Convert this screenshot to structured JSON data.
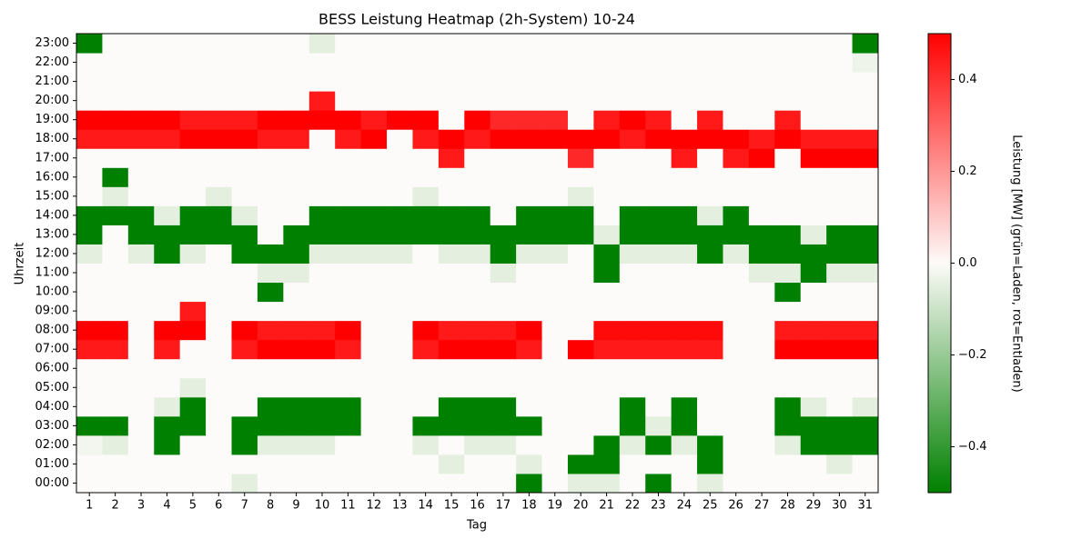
{
  "chart_data": {
    "type": "heatmap",
    "title": "BESS Leistung Heatmap (2h-System) 10-24",
    "xlabel": "Tag",
    "ylabel": "Uhrzeit",
    "colorbar_label": "Leistung [MW] (grün=Laden, rot=Entladen)",
    "x": [
      1,
      2,
      3,
      4,
      5,
      6,
      7,
      8,
      9,
      10,
      11,
      12,
      13,
      14,
      15,
      16,
      17,
      18,
      19,
      20,
      21,
      22,
      23,
      24,
      25,
      26,
      27,
      28,
      29,
      30,
      31
    ],
    "y": [
      "00:00",
      "01:00",
      "02:00",
      "03:00",
      "04:00",
      "05:00",
      "06:00",
      "07:00",
      "08:00",
      "09:00",
      "10:00",
      "11:00",
      "12:00",
      "13:00",
      "14:00",
      "15:00",
      "16:00",
      "17:00",
      "18:00",
      "19:00",
      "20:00",
      "21:00",
      "22:00",
      "23:00"
    ],
    "z": [
      [
        0,
        0,
        0,
        0,
        0,
        0,
        -0.05,
        0,
        0,
        0,
        0,
        0,
        0,
        0,
        0,
        0,
        0,
        -0.5,
        0,
        -0.05,
        -0.05,
        0,
        -0.5,
        0,
        -0.05,
        0,
        0,
        0,
        0,
        0,
        0
      ],
      [
        0,
        0,
        0,
        0,
        0,
        0,
        0,
        0,
        0,
        0,
        0,
        0,
        0,
        0,
        -0.05,
        0,
        0,
        -0.05,
        0,
        -0.5,
        -0.5,
        0,
        0,
        0,
        -0.5,
        0,
        0,
        0,
        0,
        -0.05,
        0
      ],
      [
        -0.02,
        -0.05,
        0,
        -0.5,
        0,
        0,
        -0.5,
        -0.05,
        -0.05,
        -0.05,
        0,
        0,
        0,
        -0.05,
        0,
        -0.05,
        -0.05,
        0,
        0,
        0,
        -0.5,
        -0.05,
        -0.5,
        -0.05,
        -0.5,
        0,
        0,
        -0.05,
        -0.5,
        -0.5,
        -0.5
      ],
      [
        -0.5,
        -0.5,
        0,
        -0.5,
        -0.5,
        0,
        -0.5,
        -0.5,
        -0.5,
        -0.5,
        -0.5,
        0,
        0,
        -0.5,
        -0.5,
        -0.5,
        -0.5,
        -0.5,
        0,
        0,
        0,
        -0.5,
        -0.05,
        -0.5,
        0,
        0,
        0,
        -0.5,
        -0.5,
        -0.5,
        -0.5
      ],
      [
        0,
        0,
        0,
        -0.05,
        -0.5,
        0,
        0,
        -0.5,
        -0.5,
        -0.5,
        -0.5,
        0,
        0,
        0,
        -0.5,
        -0.5,
        -0.5,
        0,
        0,
        0,
        0,
        -0.5,
        0,
        -0.5,
        0,
        0,
        0,
        -0.5,
        -0.05,
        0,
        -0.05
      ],
      [
        0,
        0,
        0,
        0,
        -0.05,
        0,
        0,
        0,
        0,
        0,
        0,
        0,
        0,
        0,
        0,
        0,
        0,
        0,
        0,
        0,
        0,
        0,
        0,
        0,
        0,
        0,
        0,
        0,
        0,
        0,
        0
      ],
      [
        0,
        0,
        0,
        0,
        0,
        0,
        0,
        0,
        0,
        0,
        0,
        0,
        0,
        0,
        0,
        0,
        0,
        0,
        0,
        0,
        0,
        0,
        0,
        0,
        0,
        0,
        0,
        0,
        0,
        0,
        0
      ],
      [
        0.45,
        0.45,
        0,
        0.45,
        0,
        0,
        0.45,
        0.5,
        0.5,
        0.5,
        0.45,
        0,
        0,
        0.45,
        0.5,
        0.5,
        0.5,
        0.45,
        0,
        0.5,
        0.45,
        0.45,
        0.45,
        0.45,
        0.45,
        0,
        0,
        0.5,
        0.5,
        0.5,
        0.5
      ],
      [
        0.5,
        0.5,
        0,
        0.5,
        0.5,
        0,
        0.5,
        0.45,
        0.45,
        0.45,
        0.5,
        0,
        0,
        0.5,
        0.45,
        0.45,
        0.45,
        0.5,
        0,
        0,
        0.48,
        0.48,
        0.48,
        0.48,
        0.48,
        0,
        0,
        0.45,
        0.45,
        0.45,
        0.45
      ],
      [
        0,
        0,
        0,
        0,
        0.45,
        0,
        0,
        0,
        0,
        0,
        0,
        0,
        0,
        0,
        0,
        0,
        0,
        0,
        0,
        0,
        0,
        0,
        0,
        0,
        0,
        0,
        0,
        0,
        0,
        0,
        0
      ],
      [
        0,
        0,
        0,
        0,
        0,
        0,
        0,
        -0.5,
        0,
        0,
        0,
        0,
        0,
        0,
        0,
        0,
        0,
        0,
        0,
        0,
        0,
        0,
        0,
        0,
        0,
        0,
        0,
        -0.5,
        0,
        0,
        0
      ],
      [
        0,
        0,
        0,
        0,
        0,
        0,
        0,
        -0.05,
        -0.05,
        0,
        0,
        0,
        0,
        0,
        0,
        0,
        -0.05,
        0,
        0,
        0,
        -0.5,
        0,
        0,
        0,
        0,
        0,
        -0.05,
        -0.05,
        -0.5,
        -0.05,
        -0.05
      ],
      [
        -0.05,
        0,
        -0.05,
        -0.5,
        -0.05,
        0,
        -0.5,
        -0.5,
        -0.5,
        -0.05,
        -0.05,
        -0.05,
        -0.05,
        0,
        -0.05,
        -0.05,
        -0.5,
        -0.05,
        -0.05,
        0,
        -0.5,
        -0.05,
        -0.05,
        -0.05,
        -0.5,
        -0.05,
        -0.5,
        -0.5,
        -0.5,
        -0.5,
        -0.5
      ],
      [
        -0.5,
        0,
        -0.5,
        -0.5,
        -0.5,
        -0.5,
        -0.5,
        0,
        -0.5,
        -0.5,
        -0.5,
        -0.5,
        -0.5,
        -0.5,
        -0.5,
        -0.5,
        -0.5,
        -0.5,
        -0.5,
        -0.5,
        -0.05,
        -0.5,
        -0.5,
        -0.5,
        -0.5,
        -0.5,
        -0.5,
        -0.5,
        -0.05,
        -0.5,
        -0.5
      ],
      [
        -0.5,
        -0.5,
        -0.5,
        -0.05,
        -0.5,
        -0.5,
        -0.05,
        0,
        0,
        -0.5,
        -0.5,
        -0.5,
        -0.5,
        -0.5,
        -0.5,
        -0.5,
        0,
        -0.5,
        -0.5,
        -0.5,
        0,
        -0.5,
        -0.5,
        -0.5,
        -0.05,
        -0.5,
        0,
        0,
        0,
        0,
        0
      ],
      [
        0,
        -0.05,
        0,
        0,
        0,
        -0.05,
        0,
        0,
        0,
        0,
        0,
        0,
        0,
        -0.05,
        0,
        0,
        0,
        0,
        0,
        -0.05,
        0,
        0,
        0,
        0,
        0,
        0,
        0,
        0,
        0,
        0,
        0
      ],
      [
        0,
        -0.5,
        0,
        0,
        0,
        0,
        0,
        0,
        0,
        0,
        0,
        0,
        0,
        0,
        0,
        0,
        0,
        0,
        0,
        0,
        0,
        0,
        0,
        0,
        0,
        0,
        0,
        0,
        0,
        0,
        0
      ],
      [
        0,
        0,
        0,
        0,
        0,
        0,
        0,
        0,
        0,
        0,
        0,
        0,
        0,
        0,
        0.45,
        0,
        0,
        0,
        0,
        0.42,
        0,
        0,
        0,
        0.45,
        0,
        0.45,
        0.5,
        0,
        0.5,
        0.5,
        0.5
      ],
      [
        0.45,
        0.45,
        0.45,
        0.45,
        0.5,
        0.5,
        0.5,
        0.45,
        0.45,
        0,
        0.45,
        0.5,
        0,
        0.45,
        0.5,
        0.45,
        0.5,
        0.5,
        0.5,
        0.5,
        0.5,
        0.45,
        0.5,
        0.5,
        0.5,
        0.5,
        0.45,
        0.5,
        0.45,
        0.45,
        0.45
      ],
      [
        0.5,
        0.5,
        0.5,
        0.5,
        0.45,
        0.45,
        0.45,
        0.5,
        0.5,
        0.5,
        0.5,
        0.45,
        0.5,
        0.5,
        0,
        0.5,
        0.42,
        0.42,
        0.42,
        0,
        0.45,
        0.5,
        0.45,
        0,
        0.45,
        0,
        0,
        0.45,
        0,
        0,
        0
      ],
      [
        0,
        0,
        0,
        0,
        0,
        0,
        0,
        0,
        0,
        0.45,
        0,
        0,
        0,
        0,
        0,
        0,
        0,
        0,
        0,
        0,
        0,
        0,
        0,
        0,
        0,
        0,
        0,
        0,
        0,
        0,
        0
      ],
      [
        0,
        0,
        0,
        0,
        0,
        0,
        0,
        0,
        0,
        0,
        0,
        0,
        0,
        0,
        0,
        0,
        0,
        0,
        0,
        0,
        0,
        0,
        0,
        0,
        0,
        0,
        0,
        0,
        0,
        0,
        0
      ],
      [
        0,
        0,
        0,
        0,
        0,
        0,
        0,
        0,
        0,
        0,
        0,
        0,
        0,
        0,
        0,
        0,
        0,
        0,
        0,
        0,
        0,
        0,
        0,
        0,
        0,
        0,
        0,
        0,
        0,
        0,
        -0.03
      ],
      [
        -0.5,
        0,
        0,
        0,
        0,
        0,
        0,
        0,
        0,
        -0.05,
        0,
        0,
        0,
        0,
        0,
        0,
        0,
        0,
        0,
        0,
        0,
        0,
        0,
        0,
        0,
        0,
        0,
        0,
        0,
        0,
        -0.5
      ]
    ],
    "zlim": [
      -0.5,
      0.5
    ],
    "zticks": [
      {
        "value": -0.4,
        "label": "−0.4"
      },
      {
        "value": -0.2,
        "label": "−0.2"
      },
      {
        "value": 0,
        "label": "0.0"
      },
      0.2,
      0.4
    ],
    "colormap": [
      "#008000",
      "#fdfbf9",
      "#ff0000"
    ]
  }
}
